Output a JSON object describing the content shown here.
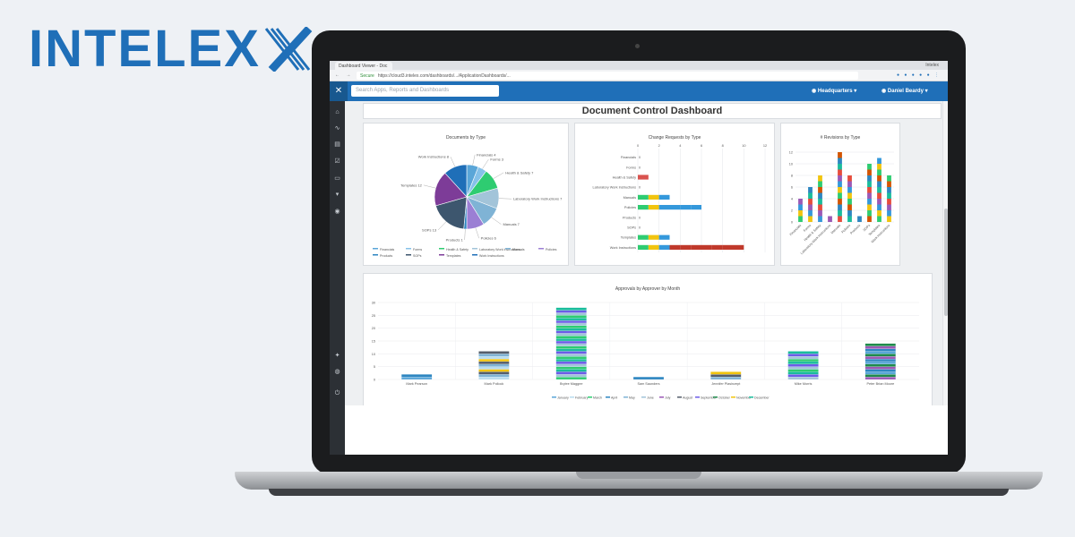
{
  "brand": {
    "logo_text": "INTELEX"
  },
  "browser": {
    "tab_title": "Dashboard Viewer - Doc",
    "user_label": "Intelex",
    "nav_glyphs": "← → C ⌂",
    "secure_label": "Secure",
    "url": "https://cloud3.intelex.com/dashboards/.../ApplicationDashboards/..."
  },
  "header": {
    "search_placeholder": "Search Apps, Reports and Dashboards",
    "location": "Headquarters",
    "user": "Daniel Beardy"
  },
  "sidebar_icons": [
    "home-icon",
    "activity-icon",
    "reports-icon",
    "tasks-icon",
    "calendar-icon",
    "messages-icon",
    "eye-icon",
    "settings-icon",
    "globe-icon",
    "power-icon"
  ],
  "dashboard": {
    "title": "Document Control Dashboard"
  },
  "colors": {
    "palette": [
      "#5aa6d8",
      "#b9dcef",
      "#2ecc71",
      "#2e86c1",
      "#7fb3d5",
      "#a2c4d9",
      "#9b59b6",
      "#555e6b",
      "#6c5ce7",
      "#d9534f",
      "#f1c40f",
      "#1abc9c"
    ]
  },
  "charts": {
    "documents_by_type": {
      "title": "Documents by Type",
      "slice_labels": [
        "Financials 4",
        "Forms 3",
        "Health & Safety 7",
        "Laboratory Work Instructions 7",
        "Manuals 7",
        "Policies 6",
        "Products 1",
        "SOPs 13",
        "Templates 12",
        "Work Instructions 8"
      ],
      "legend": [
        "Financials",
        "Forms",
        "Health & Safety",
        "Laboratory Work Instructions",
        "Manuals",
        "Policies",
        "Products",
        "SOPs",
        "Templates",
        "Work Instructions"
      ]
    },
    "change_requests_by_type": {
      "title": "Change Requests by Type",
      "ticks": [
        "0",
        "2",
        "4",
        "6",
        "8",
        "10",
        "12"
      ],
      "categories": [
        "Financials",
        "Forms",
        "Health & Safety",
        "Laboratory Work Instructions",
        "Manuals",
        "Policies",
        "Products",
        "SOPs",
        "Templates",
        "Work Instructions"
      ],
      "values": [
        0,
        0,
        1,
        0,
        3,
        6,
        0,
        0,
        3,
        10
      ]
    },
    "revisions_by_type": {
      "title": "# Revisions by Type",
      "ticks": [
        "0",
        "2",
        "4",
        "6",
        "8",
        "10",
        "12"
      ],
      "categories": [
        "Financials",
        "Forms",
        "Health & Safety",
        "Laboratory Work Instructions",
        "Manuals",
        "Policies",
        "Products",
        "SOPs",
        "Templates",
        "Work Instructions"
      ],
      "values": [
        4,
        6,
        8,
        1,
        12,
        8,
        1,
        10,
        11,
        8
      ]
    },
    "approvals_by_approver": {
      "title": "Approvals by Approver by Month",
      "ticks": [
        "0",
        "5",
        "10",
        "15",
        "20",
        "25",
        "30"
      ],
      "categories": [
        "Mark Pearson",
        "Mark Pollock",
        "Brylee Maggee",
        "Sam Saunders",
        "Jennifer Plasinzept",
        "Mike Morris",
        "Peter Brian Moore"
      ],
      "values": [
        2,
        11,
        28,
        1,
        3,
        11,
        14
      ],
      "legend": [
        "January",
        "February",
        "March",
        "April",
        "May",
        "June",
        "July",
        "August",
        "September",
        "October",
        "November",
        "December"
      ]
    }
  }
}
